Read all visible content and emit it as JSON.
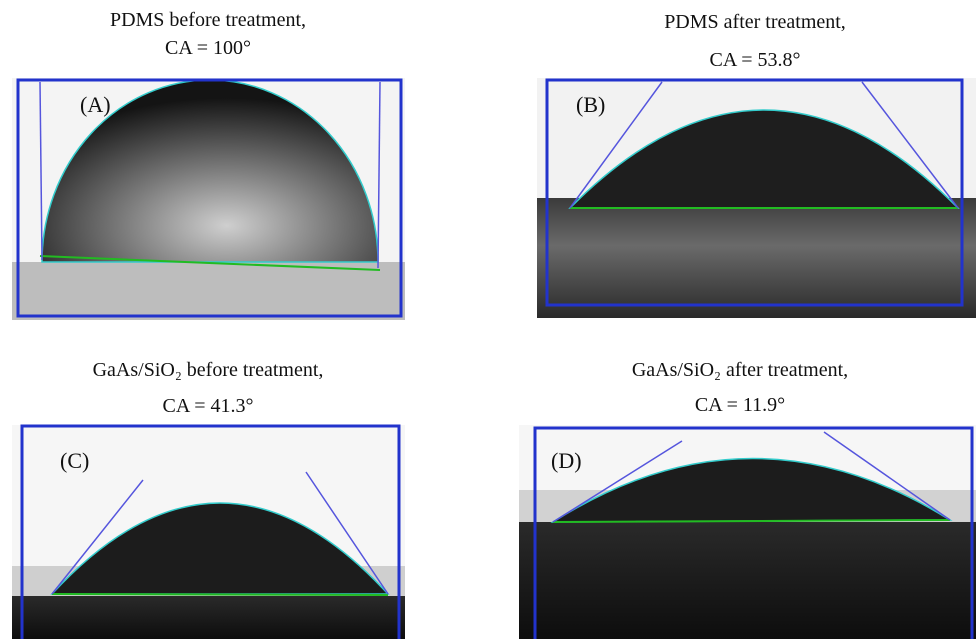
{
  "panels": [
    {
      "label": "(A)",
      "caption": "PDMS before treatment,",
      "angle": "CA = 100°"
    },
    {
      "label": "(B)",
      "caption": "PDMS after treatment,",
      "angle": "CA = 53.8°"
    },
    {
      "label": "(C)",
      "caption": "GaAs/SiO₂ before treatment,",
      "angle": "CA = 41.3°"
    },
    {
      "label": "(D)",
      "caption": "GaAs/SiO₂ after treatment,",
      "angle": "CA = 11.9°"
    }
  ]
}
